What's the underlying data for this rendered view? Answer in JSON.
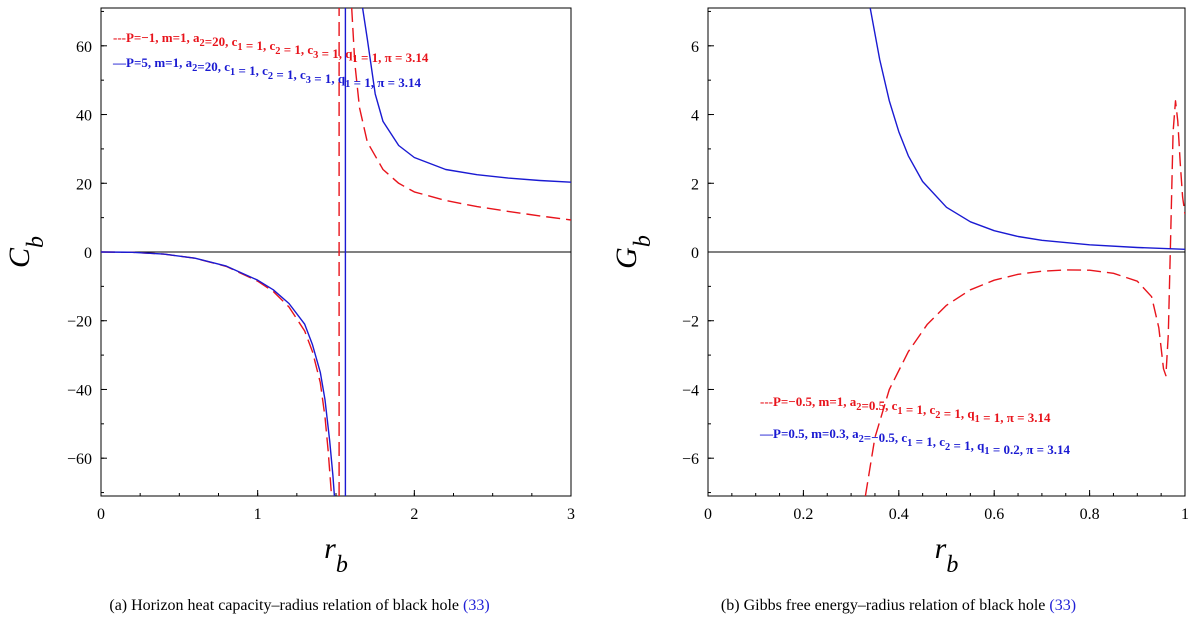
{
  "figures": [
    {
      "caption": "(a) Horizon heat capacity–radius relation of black hole",
      "caption_ref": "(33)",
      "chart_data": {
        "type": "line",
        "xlabel": "r",
        "xlabel_sub": "b",
        "ylabel": "C",
        "ylabel_sub": "b",
        "xlim": [
          0,
          3
        ],
        "ylim": [
          -71,
          71
        ],
        "xticks": [
          0,
          1,
          2,
          3
        ],
        "yticks": [
          -60,
          -40,
          -20,
          0,
          20,
          40,
          60
        ],
        "xtick_labels": [
          "0",
          "1",
          "2",
          "3"
        ],
        "ytick_labels": [
          "−60",
          "−40",
          "−20",
          "0",
          "20",
          "40",
          "60"
        ],
        "zero_line": true,
        "legend_position": "top-left",
        "series": [
          {
            "legend": "---P=−1, m=1,  a₂=20, c₁ = 1, c₂ = 1, c₃ = 1, q₁ = 1, π = 3.14",
            "color": "#e8141c",
            "dash": "dashed",
            "segments": [
              [
                [
                  0,
                  0
                ],
                [
                  0.2,
                  -0.1
                ],
                [
                  0.4,
                  -0.6
                ],
                [
                  0.6,
                  -1.8
                ],
                [
                  0.8,
                  -4.2
                ],
                [
                  1.0,
                  -8.5
                ],
                [
                  1.1,
                  -11.5
                ],
                [
                  1.2,
                  -16.0
                ],
                [
                  1.3,
                  -23.0
                ],
                [
                  1.35,
                  -29.0
                ],
                [
                  1.4,
                  -38.0
                ],
                [
                  1.43,
                  -48.0
                ],
                [
                  1.45,
                  -58.0
                ],
                [
                  1.47,
                  -70.0
                ]
              ],
              [
                [
                  1.52,
                  -71
                ],
                [
                  1.52,
                  71
                ]
              ],
              [
                [
                  1.6,
                  71
                ],
                [
                  1.62,
                  55.0
                ],
                [
                  1.65,
                  42.0
                ],
                [
                  1.7,
                  32.0
                ],
                [
                  1.8,
                  24.0
                ],
                [
                  1.9,
                  20.0
                ],
                [
                  2.0,
                  17.5
                ],
                [
                  2.2,
                  15.0
                ],
                [
                  2.4,
                  13.2
                ],
                [
                  2.6,
                  11.8
                ],
                [
                  2.8,
                  10.5
                ],
                [
                  3.0,
                  9.3
                ]
              ]
            ]
          },
          {
            "legend": "—P=5, m=1,  a₂=20, c₁ = 1, c₂ = 1, c₃ = 1, q₁ = 1, π = 3.14",
            "color": "#1a1ad2",
            "dash": "solid",
            "segments": [
              [
                [
                  0,
                  0
                ],
                [
                  0.2,
                  -0.1
                ],
                [
                  0.4,
                  -0.6
                ],
                [
                  0.6,
                  -1.8
                ],
                [
                  0.8,
                  -4.1
                ],
                [
                  1.0,
                  -8.2
                ],
                [
                  1.1,
                  -11.0
                ],
                [
                  1.2,
                  -15.0
                ],
                [
                  1.3,
                  -21.0
                ],
                [
                  1.35,
                  -27.0
                ],
                [
                  1.4,
                  -35.0
                ],
                [
                  1.43,
                  -43.0
                ],
                [
                  1.46,
                  -55.0
                ],
                [
                  1.48,
                  -65.0
                ],
                [
                  1.49,
                  -71.0
                ]
              ],
              [
                [
                  1.56,
                  -71
                ],
                [
                  1.56,
                  71
                ]
              ],
              [
                [
                  1.67,
                  71
                ],
                [
                  1.7,
                  62.0
                ],
                [
                  1.75,
                  46.0
                ],
                [
                  1.8,
                  38.0
                ],
                [
                  1.9,
                  31.0
                ],
                [
                  2.0,
                  27.5
                ],
                [
                  2.2,
                  24.0
                ],
                [
                  2.4,
                  22.5
                ],
                [
                  2.6,
                  21.5
                ],
                [
                  2.8,
                  20.8
                ],
                [
                  3.0,
                  20.3
                ]
              ]
            ]
          }
        ]
      }
    },
    {
      "caption": "(b) Gibbs free energy–radius relation of black hole",
      "caption_ref": "(33)",
      "chart_data": {
        "type": "line",
        "xlabel": "r",
        "xlabel_sub": "b",
        "ylabel": "G",
        "ylabel_sub": "b",
        "xlim": [
          0,
          1
        ],
        "ylim": [
          -7.1,
          7.1
        ],
        "xticks": [
          0,
          0.2,
          0.4,
          0.6,
          0.8,
          1
        ],
        "yticks": [
          -6,
          -4,
          -2,
          0,
          2,
          4,
          6
        ],
        "xtick_labels": [
          "0",
          "0.2",
          "0.4",
          "0.6",
          "0.8",
          "1"
        ],
        "ytick_labels": [
          "−6",
          "−4",
          "−2",
          "0",
          "2",
          "4",
          "6"
        ],
        "zero_line": true,
        "legend_position": "bottom-right",
        "series": [
          {
            "legend": "---P=−0.5, m=1,  a₂=0.5, c₁ = 1, c₂ = 1, q₁ = 1, π = 3.14",
            "color": "#e8141c",
            "dash": "dashed",
            "segments": [
              [
                [
                  0.33,
                  -7.1
                ],
                [
                  0.35,
                  -5.4
                ],
                [
                  0.38,
                  -4.0
                ],
                [
                  0.42,
                  -2.9
                ],
                [
                  0.46,
                  -2.1
                ],
                [
                  0.5,
                  -1.55
                ],
                [
                  0.55,
                  -1.1
                ],
                [
                  0.6,
                  -0.82
                ],
                [
                  0.65,
                  -0.65
                ],
                [
                  0.7,
                  -0.56
                ],
                [
                  0.75,
                  -0.52
                ],
                [
                  0.8,
                  -0.53
                ],
                [
                  0.85,
                  -0.62
                ],
                [
                  0.9,
                  -0.85
                ],
                [
                  0.93,
                  -1.3
                ],
                [
                  0.945,
                  -2.2
                ],
                [
                  0.955,
                  -3.4
                ],
                [
                  0.96,
                  -3.6
                ],
                [
                  0.965,
                  -2.4
                ],
                [
                  0.97,
                  0.5
                ],
                [
                  0.975,
                  3.5
                ],
                [
                  0.98,
                  4.4
                ],
                [
                  0.985,
                  3.8
                ],
                [
                  0.99,
                  2.6
                ],
                [
                  0.995,
                  1.6
                ],
                [
                  1.0,
                  1.1
                ]
              ]
            ]
          },
          {
            "legend": "—P=0.5, m=0.3, a₂=−0.5, c₁ = 1, c₂ = 1,  q₁ = 0.2, π = 3.14",
            "color": "#1a1ad2",
            "dash": "solid",
            "segments": [
              [
                [
                  0.34,
                  7.1
                ],
                [
                  0.36,
                  5.6
                ],
                [
                  0.38,
                  4.4
                ],
                [
                  0.4,
                  3.5
                ],
                [
                  0.42,
                  2.8
                ],
                [
                  0.45,
                  2.05
                ],
                [
                  0.5,
                  1.3
                ],
                [
                  0.55,
                  0.88
                ],
                [
                  0.6,
                  0.62
                ],
                [
                  0.65,
                  0.45
                ],
                [
                  0.7,
                  0.34
                ],
                [
                  0.8,
                  0.21
                ],
                [
                  0.9,
                  0.13
                ],
                [
                  1.0,
                  0.08
                ]
              ]
            ]
          }
        ]
      }
    }
  ]
}
